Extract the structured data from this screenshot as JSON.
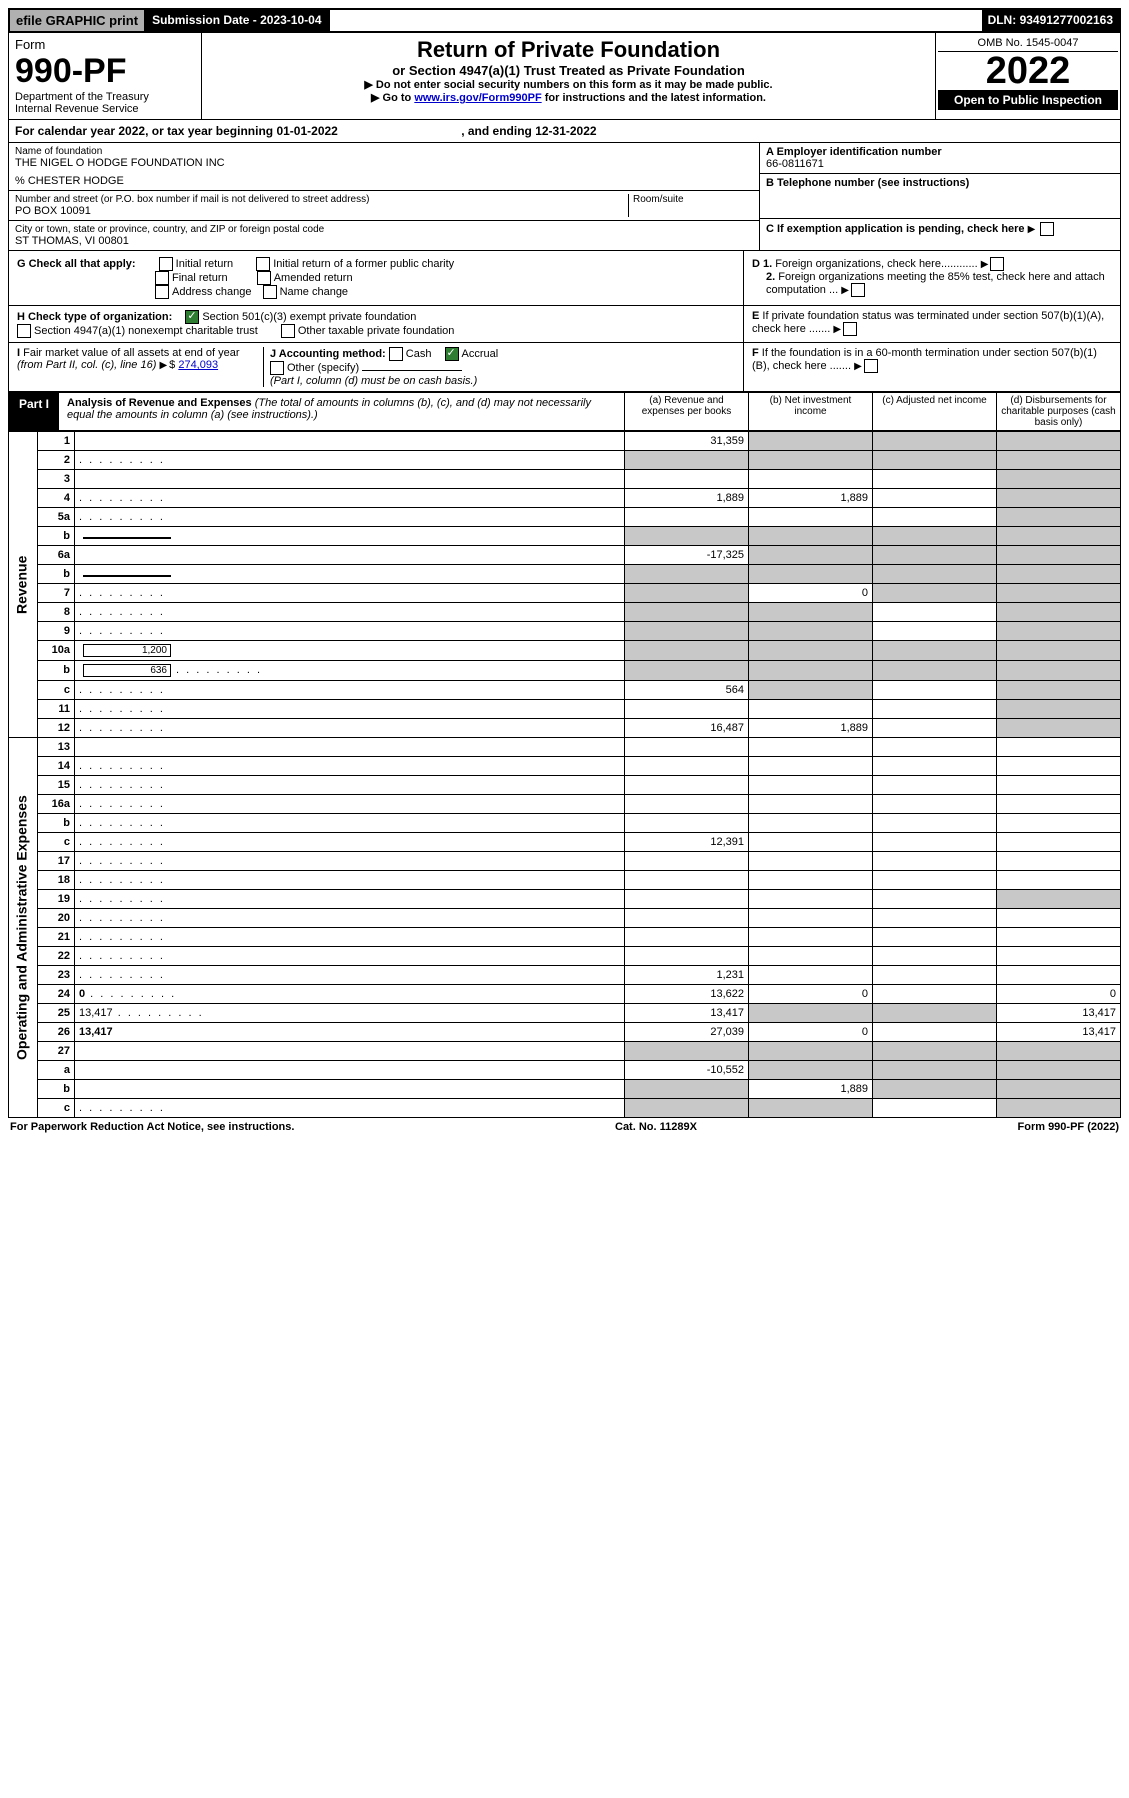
{
  "topbar": {
    "efile": "efile GRAPHIC print",
    "subdate_label": "Submission Date - ",
    "subdate": "2023-10-04",
    "dln_label": "DLN: ",
    "dln": "93491277002163"
  },
  "header": {
    "form_word": "Form",
    "form_num": "990-PF",
    "dept": "Department of the Treasury",
    "irs": "Internal Revenue Service",
    "title": "Return of Private Foundation",
    "subtitle": "or Section 4947(a)(1) Trust Treated as Private Foundation",
    "note1": "▶ Do not enter social security numbers on this form as it may be made public.",
    "note2_pre": "▶ Go to ",
    "note2_link": "www.irs.gov/Form990PF",
    "note2_post": " for instructions and the latest information.",
    "omb": "OMB No. 1545-0047",
    "year": "2022",
    "open": "Open to Public Inspection"
  },
  "infoband": {
    "text_pre": "For calendar year 2022, or tax year beginning ",
    "begin": "01-01-2022",
    "mid": " , and ending ",
    "end": "12-31-2022"
  },
  "name": {
    "label": "Name of foundation",
    "value": "THE NIGEL O HODGE FOUNDATION INC",
    "care": "% CHESTER HODGE",
    "addr_label": "Number and street (or P.O. box number if mail is not delivered to street address)",
    "addr": "PO BOX 10091",
    "room_label": "Room/suite",
    "city_label": "City or town, state or province, country, and ZIP or foreign postal code",
    "city": "ST THOMAS, VI  00801"
  },
  "right": {
    "a_label": "A Employer identification number",
    "a_val": "66-0811671",
    "b_label": "B Telephone number (see instructions)",
    "c_label": "C If exemption application is pending, check here",
    "d1": "D 1. Foreign organizations, check here............",
    "d2": "2. Foreign organizations meeting the 85% test, check here and attach computation ...",
    "e": "E If private foundation status was terminated under section 507(b)(1)(A), check here .......",
    "f": "F If the foundation is in a 60-month termination under section 507(b)(1)(B), check here ......."
  },
  "g": {
    "label": "G Check all that apply:",
    "opts": [
      "Initial return",
      "Final return",
      "Address change",
      "Initial return of a former public charity",
      "Amended return",
      "Name change"
    ]
  },
  "h": {
    "label": "H Check type of organization:",
    "o1": "Section 501(c)(3) exempt private foundation",
    "o2": "Section 4947(a)(1) nonexempt charitable trust",
    "o3": "Other taxable private foundation"
  },
  "i": {
    "label": "I Fair market value of all assets at end of year (from Part II, col. (c), line 16)",
    "val": "274,093"
  },
  "j": {
    "label": "J Accounting method:",
    "o1": "Cash",
    "o2": "Accrual",
    "o3": "Other (specify)",
    "note": "(Part I, column (d) must be on cash basis.)"
  },
  "part1": {
    "label": "Part I",
    "title": "Analysis of Revenue and Expenses",
    "note": "(The total of amounts in columns (b), (c), and (d) may not necessarily equal the amounts in column (a) (see instructions).)",
    "col_a": "(a) Revenue and expenses per books",
    "col_b": "(b) Net investment income",
    "col_c": "(c) Adjusted net income",
    "col_d": "(d) Disbursements for charitable purposes (cash basis only)"
  },
  "sections": {
    "revenue": "Revenue",
    "expenses": "Operating and Administrative Expenses"
  },
  "rows": [
    {
      "n": "1",
      "d": "",
      "a": "31,359",
      "b": "",
      "c": "",
      "shade_bcd": true
    },
    {
      "n": "2",
      "d": "",
      "dots": true,
      "a": "",
      "b": "",
      "c": "",
      "shade_all": true,
      "bold_not": true
    },
    {
      "n": "3",
      "d": "",
      "a": "",
      "b": "",
      "c": "",
      "shade_d": true
    },
    {
      "n": "4",
      "d": "",
      "dots": true,
      "a": "1,889",
      "b": "1,889",
      "c": "",
      "shade_d": true
    },
    {
      "n": "5a",
      "d": "",
      "dots": true,
      "a": "",
      "b": "",
      "c": "",
      "shade_d": true
    },
    {
      "n": "b",
      "d": "",
      "inline": "",
      "a": "",
      "b": "",
      "c": "",
      "shade_abcd": true
    },
    {
      "n": "6a",
      "d": "",
      "a": "-17,325",
      "b": "",
      "c": "",
      "shade_bcd": true
    },
    {
      "n": "b",
      "d": "",
      "inline": "",
      "a": "",
      "b": "",
      "c": "",
      "shade_abcd": true
    },
    {
      "n": "7",
      "d": "",
      "dots": true,
      "a": "",
      "b": "0",
      "c": "",
      "shade_a": true,
      "shade_cd": true
    },
    {
      "n": "8",
      "d": "",
      "dots": true,
      "a": "",
      "b": "",
      "c": "",
      "shade_ab": true,
      "shade_d": true
    },
    {
      "n": "9",
      "d": "",
      "dots": true,
      "a": "",
      "b": "",
      "c": "",
      "shade_ab": true,
      "shade_d": true
    },
    {
      "n": "10a",
      "d": "",
      "inline": "1,200",
      "a": "",
      "b": "",
      "c": "",
      "shade_abcd": true
    },
    {
      "n": "b",
      "d": "",
      "dots": true,
      "inline": "636",
      "a": "",
      "b": "",
      "c": "",
      "shade_abcd": true
    },
    {
      "n": "c",
      "d": "",
      "dots": true,
      "a": "564",
      "b": "",
      "c": "",
      "shade_b": true,
      "shade_d": true
    },
    {
      "n": "11",
      "d": "",
      "dots": true,
      "a": "",
      "b": "",
      "c": "",
      "shade_d": true
    },
    {
      "n": "12",
      "d": "",
      "dots": true,
      "bold": true,
      "a": "16,487",
      "b": "1,889",
      "c": "",
      "shade_d": true
    }
  ],
  "exp_rows": [
    {
      "n": "13",
      "d": "",
      "a": "",
      "b": "",
      "c": ""
    },
    {
      "n": "14",
      "d": "",
      "dots": true,
      "a": "",
      "b": "",
      "c": ""
    },
    {
      "n": "15",
      "d": "",
      "dots": true,
      "a": "",
      "b": "",
      "c": ""
    },
    {
      "n": "16a",
      "d": "",
      "dots": true,
      "a": "",
      "b": "",
      "c": ""
    },
    {
      "n": "b",
      "d": "",
      "dots": true,
      "a": "",
      "b": "",
      "c": ""
    },
    {
      "n": "c",
      "d": "",
      "dots": true,
      "a": "12,391",
      "b": "",
      "c": ""
    },
    {
      "n": "17",
      "d": "",
      "dots": true,
      "a": "",
      "b": "",
      "c": ""
    },
    {
      "n": "18",
      "d": "",
      "dots": true,
      "a": "",
      "b": "",
      "c": ""
    },
    {
      "n": "19",
      "d": "",
      "dots": true,
      "a": "",
      "b": "",
      "c": "",
      "shade_d": true
    },
    {
      "n": "20",
      "d": "",
      "dots": true,
      "a": "",
      "b": "",
      "c": ""
    },
    {
      "n": "21",
      "d": "",
      "dots": true,
      "a": "",
      "b": "",
      "c": ""
    },
    {
      "n": "22",
      "d": "",
      "dots": true,
      "a": "",
      "b": "",
      "c": ""
    },
    {
      "n": "23",
      "d": "",
      "dots": true,
      "a": "1,231",
      "b": "",
      "c": ""
    },
    {
      "n": "24",
      "d": "0",
      "dots": true,
      "bold": true,
      "a": "13,622",
      "b": "0",
      "c": ""
    },
    {
      "n": "25",
      "d": "13,417",
      "dots": true,
      "a": "13,417",
      "b": "",
      "c": "",
      "shade_bc": true
    },
    {
      "n": "26",
      "d": "13,417",
      "bold": true,
      "a": "27,039",
      "b": "0",
      "c": ""
    },
    {
      "n": "27",
      "d": "",
      "a": "",
      "b": "",
      "c": "",
      "shade_abcd": true
    },
    {
      "n": "a",
      "d": "",
      "bold": true,
      "a": "-10,552",
      "b": "",
      "c": "",
      "shade_bcd": true
    },
    {
      "n": "b",
      "d": "",
      "bold": true,
      "a": "",
      "b": "1,889",
      "c": "",
      "shade_a": true,
      "shade_cd": true
    },
    {
      "n": "c",
      "d": "",
      "dots": true,
      "bold": true,
      "a": "",
      "b": "",
      "c": "",
      "shade_ab": true,
      "shade_d": true
    }
  ],
  "footer": {
    "left": "For Paperwork Reduction Act Notice, see instructions.",
    "mid": "Cat. No. 11289X",
    "right": "Form 990-PF (2022)"
  }
}
